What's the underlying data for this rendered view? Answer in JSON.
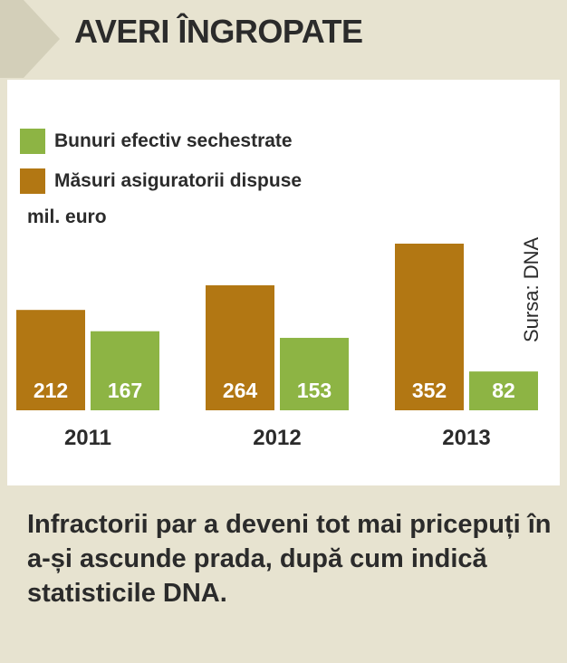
{
  "header": {
    "title": "AVERI ÎNGROPATE"
  },
  "colors": {
    "brown": "#b27713",
    "green": "#8db444",
    "background": "#e7e3d0",
    "panel": "#ffffff",
    "bar_label": "#ffffff"
  },
  "legend": {
    "green_label": "Bunuri efectiv sechestrate",
    "brown_label": "Măsuri asiguratorii dispuse"
  },
  "unit": "mil. euro",
  "source": "Sursa: DNA",
  "caption": "Infractorii par a deveni tot mai pricepuți în a-și ascunde prada, după cum indică statisticile DNA.",
  "chart_data": {
    "type": "bar",
    "title": "AVERI ÎNGROPATE",
    "ylabel": "mil. euro",
    "categories": [
      "2011",
      "2012",
      "2013"
    ],
    "series": [
      {
        "name": "Măsuri asiguratorii dispuse",
        "values": [
          212,
          264,
          352
        ],
        "color": "#b27713"
      },
      {
        "name": "Bunuri efectiv sechestrate",
        "values": [
          167,
          153,
          82
        ],
        "color": "#8db444"
      }
    ],
    "ylim": [
      0,
      352
    ],
    "grid": false,
    "legend_position": "top-left"
  }
}
